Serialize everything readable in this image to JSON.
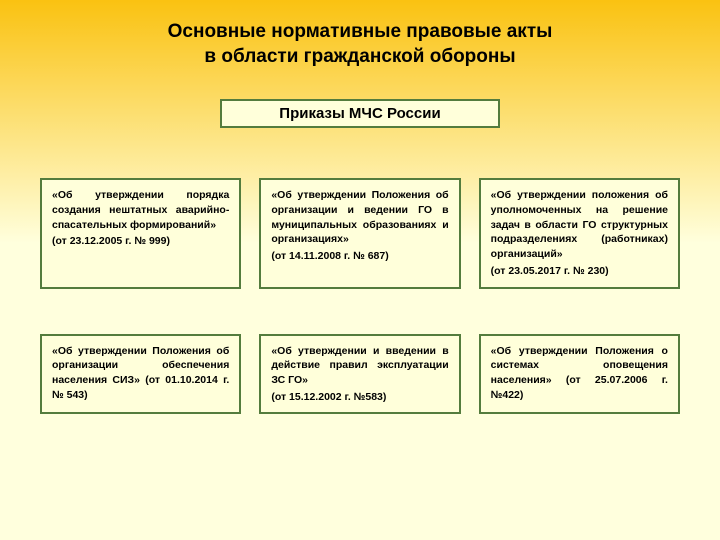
{
  "colors": {
    "page_bg_top": "#fac211",
    "page_bg_bottom": "#ffffdd",
    "title_color": "#000000",
    "subtitle_bg": "#ffffda",
    "subtitle_border": "#547c3d",
    "card_bg": "#ffffda",
    "card_border": "#547c3d",
    "card_text": "#000000"
  },
  "title_line1": "Основные нормативные правовые акты",
  "title_line2": "в области гражданской обороны",
  "subtitle": "Приказы МЧС России",
  "rows": [
    [
      {
        "title": "«Об утверждении порядка создания нештатных аварийно-спасательных формирований»",
        "date": "(от 23.12.2005 г. № 999)"
      },
      {
        "title": "«Об утверждении Положения об организации и ведении ГО в муниципальных образованиях и организациях»",
        "date": "(от 14.11.2008 г. № 687)"
      },
      {
        "title": "«Об утверждении положения об уполномоченных на решение задач в области ГО структурных подразделениях (работниках) организаций»",
        "date": "(от 23.05.2017 г. № 230)"
      }
    ],
    [
      {
        "title": "«Об утверждении Положения об организации обеспечения населения СИЗ» (от 01.10.2014 г. № 543)",
        "date": ""
      },
      {
        "title": "«Об утверждении и введении в действие правил эксплуатации ЗС ГО»",
        "date": "(от 15.12.2002 г. №583)"
      },
      {
        "title": "«Об утверждении Положения о системах оповещения населения» (от 25.07.2006 г. №422)",
        "date": ""
      }
    ]
  ]
}
